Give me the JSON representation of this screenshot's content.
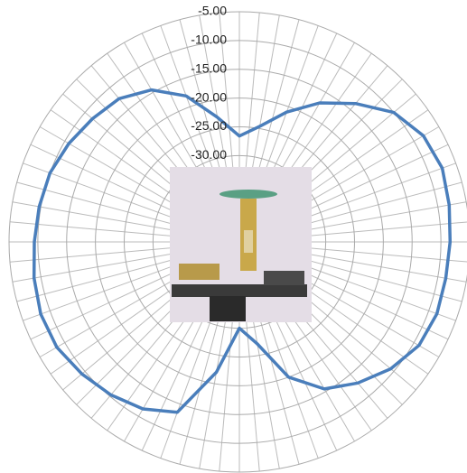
{
  "chart_data": {
    "type": "radar",
    "categories": [
      null,
      null,
      null,
      null,
      null,
      null,
      null,
      null,
      null,
      null,
      null,
      null,
      null,
      null,
      null,
      null,
      null,
      null,
      null,
      null,
      null,
      null,
      null,
      null,
      null,
      null,
      null,
      null,
      null,
      null,
      null,
      null,
      null,
      null,
      null,
      null
    ],
    "series": [
      {
        "color": "#4a7ebb",
        "values": [
          -26.6,
          -24.6,
          -21,
          -17.1,
          -13.6,
          -10,
          -8.1,
          -7.5,
          -8,
          -8.4,
          -8.6,
          -8.5,
          -9,
          -10.7,
          -13,
          -15.5,
          -20,
          -27,
          -30,
          -22,
          -13.5,
          -11.5,
          -10.3,
          -9.3,
          -8.4,
          -8.3,
          -8.8,
          -9.4,
          -9.7,
          -10,
          -10.8,
          -11.7,
          -12.5,
          -14.5,
          -18,
          -23
        ]
      }
    ],
    "ylim": [
      -45,
      -5
    ],
    "yticks": [
      {
        "value": -30,
        "label": "-30.00"
      },
      {
        "value": -25,
        "label": "-25.00"
      },
      {
        "value": -20,
        "label": "-20.00"
      },
      {
        "value": -15,
        "label": "-15.00"
      },
      {
        "value": -10,
        "label": "-10.00"
      },
      {
        "value": -5,
        "label": "-5.00"
      }
    ],
    "grid": true
  }
}
